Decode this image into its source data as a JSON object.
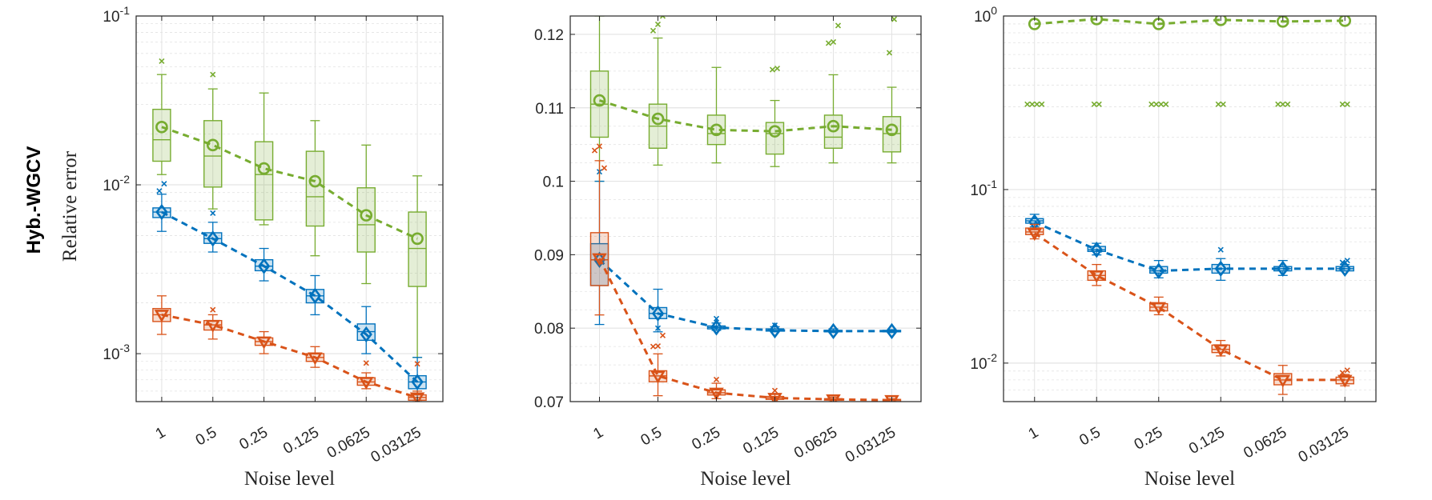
{
  "row_label": "Hyb.-WGCV",
  "colors": {
    "green": "#77AC30",
    "blue": "#0072BD",
    "orange": "#D95319",
    "grid": "#e3e3e3",
    "axis": "#262626"
  },
  "chart_data": [
    {
      "type": "box",
      "yscale": "log",
      "ylim": [
        0.00052,
        0.1
      ],
      "yticks": [
        {
          "value": 0.1,
          "base": "10",
          "exp": "-1"
        },
        {
          "value": 0.01,
          "base": "10",
          "exp": "-2"
        },
        {
          "value": 0.001,
          "base": "10",
          "exp": "-3"
        }
      ],
      "xlabel": "Noise level",
      "ylabel": "Relative error",
      "categories": [
        "1",
        "0.5",
        "0.25",
        "0.125",
        "0.0625",
        "0.03125"
      ],
      "series": [
        {
          "name": "green",
          "marker": "circle",
          "means": [
            0.022,
            0.0172,
            0.0125,
            0.0105,
            0.0066,
            0.0048
          ],
          "boxes": [
            [
              0.0115,
              0.0138,
              0.0185,
              0.028,
              0.045
            ],
            [
              0.0072,
              0.0097,
              0.0148,
              0.024,
              0.037
            ],
            [
              0.0058,
              0.0062,
              0.0115,
              0.018,
              0.035
            ],
            [
              0.0038,
              0.0057,
              0.0085,
              0.0158,
              0.024
            ],
            [
              0.0026,
              0.004,
              0.0058,
              0.0096,
              0.0172
            ],
            [
              0.00095,
              0.0025,
              0.0042,
              0.0069,
              0.0113
            ]
          ],
          "outliers": [
            [
              0.054
            ],
            [
              0.045
            ],
            [],
            [],
            [],
            []
          ]
        },
        {
          "name": "blue",
          "marker": "diamond",
          "means": [
            0.0069,
            0.0048,
            0.0033,
            0.0022,
            0.0013,
            0.00068
          ],
          "boxes": [
            [
              0.0053,
              0.0064,
              0.0069,
              0.0073,
              0.0088
            ],
            [
              0.004,
              0.0045,
              0.0048,
              0.0052,
              0.006
            ],
            [
              0.0027,
              0.0031,
              0.0033,
              0.0036,
              0.0042
            ],
            [
              0.0017,
              0.002,
              0.0022,
              0.0024,
              0.0029
            ],
            [
              0.001,
              0.0012,
              0.00135,
              0.0015,
              0.0019
            ],
            [
              0.00053,
              0.00062,
              0.00068,
              0.00074,
              0.00095
            ]
          ],
          "outliers": [
            [
              0.0092,
              0.0106
            ],
            [
              0.0068
            ],
            [],
            [],
            [],
            []
          ]
        },
        {
          "name": "orange",
          "marker": "triangle-down",
          "means": [
            0.0017,
            0.00148,
            0.00118,
            0.00095,
            0.00068,
            0.00055
          ],
          "boxes": [
            [
              0.0013,
              0.00155,
              0.0017,
              0.00185,
              0.0022
            ],
            [
              0.00122,
              0.00138,
              0.00148,
              0.00157,
              0.0017
            ],
            [
              0.001,
              0.00112,
              0.00118,
              0.00124,
              0.00135
            ],
            [
              0.00083,
              0.0009,
              0.00095,
              0.001,
              0.0011
            ],
            [
              0.00062,
              0.00065,
              0.00068,
              0.00072,
              0.00077
            ],
            [
              0.00052,
              0.00053,
              0.00055,
              0.00057,
              0.0006
            ]
          ],
          "outliers": [
            [],
            [
              0.00182
            ],
            [],
            [],
            [
              0.00088
            ],
            [
              0.00087
            ]
          ]
        }
      ]
    },
    {
      "type": "box",
      "yscale": "linear",
      "ylim": [
        0.07,
        0.1225
      ],
      "yticks": [
        {
          "value": 0.07,
          "label": "0.07"
        },
        {
          "value": 0.08,
          "label": "0.08"
        },
        {
          "value": 0.09,
          "label": "0.09"
        },
        {
          "value": 0.1,
          "label": "0.1"
        },
        {
          "value": 0.11,
          "label": "0.11"
        },
        {
          "value": 0.12,
          "label": "0.12"
        }
      ],
      "xlabel": "Noise level",
      "categories": [
        "1",
        "0.5",
        "0.25",
        "0.125",
        "0.0625",
        "0.03125"
      ],
      "series": [
        {
          "name": "green",
          "marker": "circle",
          "means": [
            0.111,
            0.1085,
            0.107,
            0.1068,
            0.1075,
            0.107
          ],
          "boxes": [
            [
              0.1,
              0.106,
              0.1105,
              0.115,
              0.1225
            ],
            [
              0.1022,
              0.1045,
              0.1075,
              0.1105,
              0.1195
            ],
            [
              0.1025,
              0.105,
              0.1065,
              0.109,
              0.1155
            ],
            [
              0.102,
              0.1037,
              0.1065,
              0.108,
              0.111
            ],
            [
              0.1025,
              0.1045,
              0.106,
              0.109,
              0.1145
            ],
            [
              0.1025,
              0.104,
              0.1065,
              0.1088,
              0.1128
            ]
          ],
          "outliers": [
            [],
            [
              0.1205,
              0.1218,
              0.1225
            ],
            [],
            [
              0.1152,
              0.1158
            ],
            [
              0.1188,
              0.1194,
              0.1212
            ],
            [
              0.1175,
              0.1225
            ]
          ]
        },
        {
          "name": "blue",
          "marker": "diamond",
          "means": [
            0.0893,
            0.082,
            0.0801,
            0.0797,
            0.0796,
            0.0796
          ],
          "boxes": [
            [
              0.0805,
              0.0858,
              0.0893,
              0.0915,
              0.1
            ],
            [
              0.0795,
              0.0813,
              0.082,
              0.0828,
              0.0853
            ],
            [
              0.0797,
              0.0799,
              0.0801,
              0.0803,
              0.0807
            ],
            [
              0.0795,
              0.0796,
              0.0797,
              0.0799,
              0.0802
            ],
            [
              0.0794,
              0.0795,
              0.0796,
              0.0797,
              0.0799
            ],
            [
              0.0794,
              0.0795,
              0.0796,
              0.0797,
              0.0798
            ]
          ],
          "outliers": [
            [
              0.1013
            ],
            [
              0.08
            ],
            [
              0.0813
            ],
            [
              0.0804
            ],
            [],
            []
          ]
        },
        {
          "name": "orange",
          "marker": "triangle-down",
          "means": [
            0.0895,
            0.0735,
            0.0712,
            0.0705,
            0.0703,
            0.0702
          ],
          "boxes": [
            [
              0.0818,
              0.0858,
              0.0893,
              0.093,
              0.1028
            ],
            [
              0.0708,
              0.0727,
              0.0735,
              0.0742,
              0.0765
            ],
            [
              0.0704,
              0.0709,
              0.0712,
              0.0716,
              0.0725
            ],
            [
              0.07,
              0.0703,
              0.0705,
              0.0707,
              0.071
            ],
            [
              0.07,
              0.0702,
              0.0703,
              0.0704,
              0.0706
            ],
            [
              0.07,
              0.07,
              0.0702,
              0.0703,
              0.0704
            ]
          ],
          "outliers": [
            [
              0.1042,
              0.1052,
              0.1018
            ],
            [
              0.0775,
              0.078,
              0.079
            ],
            [
              0.073
            ],
            [
              0.0715
            ],
            [],
            []
          ]
        }
      ]
    },
    {
      "type": "box",
      "yscale": "log",
      "ylim": [
        0.006,
        1.0
      ],
      "yticks": [
        {
          "value": 1.0,
          "base": "10",
          "exp": "0"
        },
        {
          "value": 0.1,
          "base": "10",
          "exp": "-1"
        },
        {
          "value": 0.01,
          "base": "10",
          "exp": "-2"
        }
      ],
      "xlabel": "Noise level",
      "categories": [
        "1",
        "0.5",
        "0.25",
        "0.125",
        "0.0625",
        "0.03125"
      ],
      "series": [
        {
          "name": "green",
          "marker": "circle",
          "means": [
            0.9,
            0.96,
            0.9,
            0.95,
            0.93,
            0.94
          ],
          "boxes": [],
          "outliers": [
            [
              0.31,
              0.31,
              0.31,
              0.31
            ],
            [
              0.31,
              0.31
            ],
            [
              0.31,
              0.31,
              0.31,
              0.31
            ],
            [
              0.31,
              0.31
            ],
            [
              0.31,
              0.31,
              0.31
            ],
            [
              0.31,
              0.31
            ]
          ]
        },
        {
          "name": "blue",
          "marker": "diamond",
          "means": [
            0.065,
            0.045,
            0.034,
            0.035,
            0.035,
            0.035
          ],
          "boxes": [
            [
              0.061,
              0.064,
              0.066,
              0.068,
              0.072
            ],
            [
              0.042,
              0.044,
              0.045,
              0.047,
              0.049
            ],
            [
              0.031,
              0.033,
              0.034,
              0.036,
              0.039
            ],
            [
              0.03,
              0.033,
              0.035,
              0.037,
              0.04
            ],
            [
              0.032,
              0.034,
              0.035,
              0.036,
              0.039
            ],
            [
              0.034,
              0.034,
              0.035,
              0.036,
              0.037
            ]
          ],
          "outliers": [
            [],
            [],
            [],
            [
              0.045
            ],
            [],
            [
              0.038,
              0.039
            ]
          ]
        },
        {
          "name": "orange",
          "marker": "triangle-down",
          "means": [
            0.056,
            0.032,
            0.021,
            0.012,
            0.008,
            0.008
          ],
          "boxes": [
            [
              0.052,
              0.055,
              0.057,
              0.06,
              0.063
            ],
            [
              0.028,
              0.03,
              0.032,
              0.034,
              0.037
            ],
            [
              0.019,
              0.02,
              0.021,
              0.022,
              0.024
            ],
            [
              0.011,
              0.0115,
              0.012,
              0.0127,
              0.0135
            ],
            [
              0.0066,
              0.0075,
              0.008,
              0.0087,
              0.0097
            ],
            [
              0.0074,
              0.0076,
              0.008,
              0.0083,
              0.0086
            ]
          ],
          "outliers": [
            [],
            [],
            [],
            [],
            [],
            [
              0.0088,
              0.0091
            ]
          ]
        }
      ]
    }
  ]
}
